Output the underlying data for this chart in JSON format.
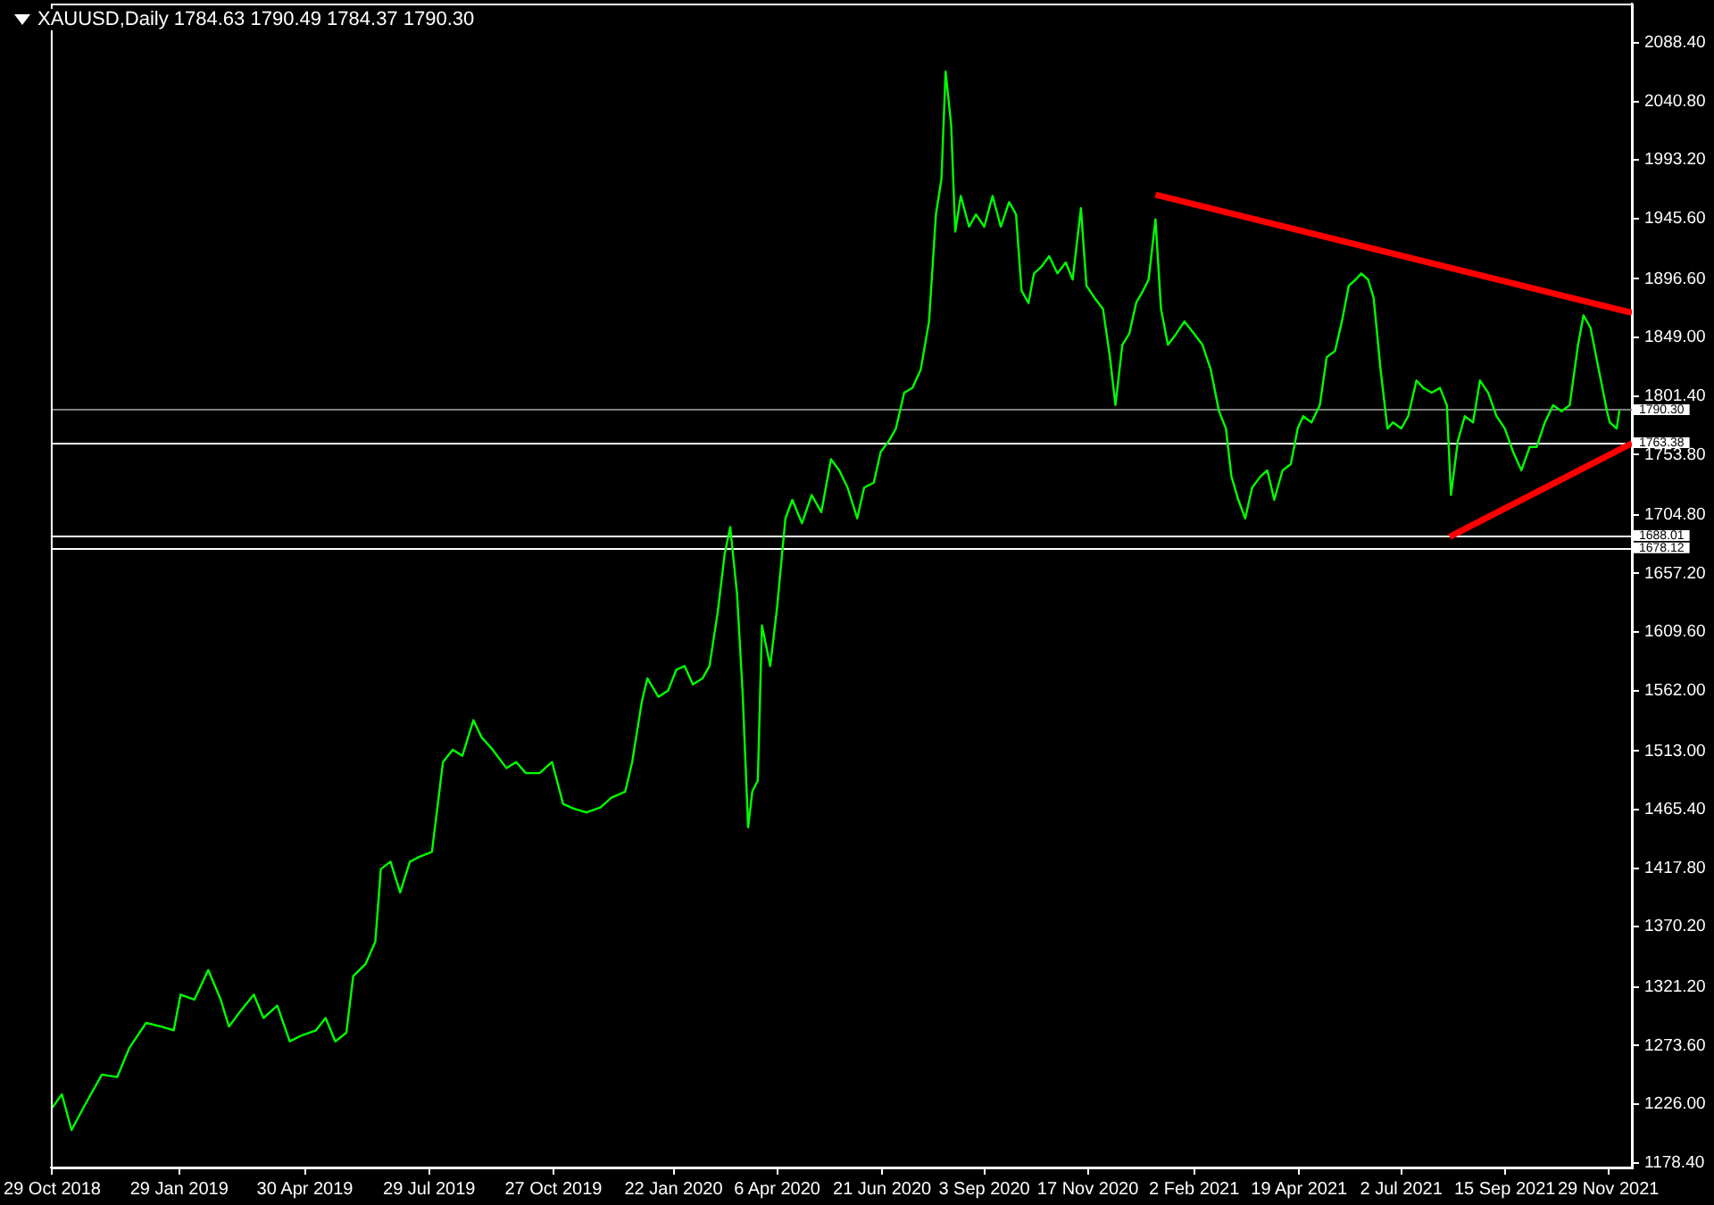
{
  "chart_data": {
    "type": "line",
    "title": "XAUUSD,Daily 1784.63 1790.49 1784.37 1790.30",
    "xlim": [
      "2018-10-28",
      "2021-12-16"
    ],
    "xticks": [
      {
        "value": "2018-10-29",
        "label": "29 Oct 2018"
      },
      {
        "value": "2019-01-29",
        "label": "29 Jan 2019"
      },
      {
        "value": "2019-04-30",
        "label": "30 Apr 2019"
      },
      {
        "value": "2019-07-29",
        "label": "29 Jul 2019"
      },
      {
        "value": "2019-10-27",
        "label": "27 Oct 2019"
      },
      {
        "value": "2020-01-22",
        "label": "22 Jan 2020"
      },
      {
        "value": "2020-04-06",
        "label": "6 Apr 2020"
      },
      {
        "value": "2020-06-21",
        "label": "21 Jun 2020"
      },
      {
        "value": "2020-09-03",
        "label": "3 Sep 2020"
      },
      {
        "value": "2020-11-17",
        "label": "17 Nov 2020"
      },
      {
        "value": "2021-02-02",
        "label": "2 Feb 2021"
      },
      {
        "value": "2021-04-19",
        "label": "19 Apr 2021"
      },
      {
        "value": "2021-07-02",
        "label": "2 Jul 2021"
      },
      {
        "value": "2021-09-15",
        "label": "15 Sep 2021"
      },
      {
        "value": "2021-11-29",
        "label": "29 Nov 2021"
      }
    ],
    "ylim": [
      1174.5,
      2120.3
    ],
    "yticks": [
      {
        "value": 2088.4,
        "label": "2088.40"
      },
      {
        "value": 2040.8,
        "label": "2040.80"
      },
      {
        "value": 1993.2,
        "label": "1993.20"
      },
      {
        "value": 1945.6,
        "label": "1945.60"
      },
      {
        "value": 1896.6,
        "label": "1896.60"
      },
      {
        "value": 1849,
        "label": "1849.00"
      },
      {
        "value": 1801.4,
        "label": "1801.40"
      },
      {
        "value": 1753.8,
        "label": "1753.80"
      },
      {
        "value": 1704.8,
        "label": "1704.80"
      },
      {
        "value": 1657.2,
        "label": "1657.20"
      },
      {
        "value": 1609.6,
        "label": "1609.60"
      },
      {
        "value": 1562,
        "label": "1562.00"
      },
      {
        "value": 1513,
        "label": "1513.00"
      },
      {
        "value": 1465.4,
        "label": "1465.40"
      },
      {
        "value": 1417.8,
        "label": "1417.80"
      },
      {
        "value": 1370.2,
        "label": "1370.20"
      },
      {
        "value": 1321.2,
        "label": "1321.20"
      },
      {
        "value": 1273.6,
        "label": "1273.60"
      },
      {
        "value": 1226,
        "label": "1226.00"
      },
      {
        "value": 1178.4,
        "label": "1178.40"
      }
    ],
    "grid": false,
    "legend": false,
    "marker": "none",
    "line_style": "solid",
    "series": [
      {
        "color": "#00ff00",
        "x": [
          "2018-10-29",
          "2018-11-05",
          "2018-11-12",
          "2018-11-22",
          "2018-12-04",
          "2018-12-15",
          "2018-12-24",
          "2019-01-05",
          "2019-01-16",
          "2019-01-25",
          "2019-01-30",
          "2019-02-09",
          "2019-02-19",
          "2019-02-28",
          "2019-03-06",
          "2019-03-14",
          "2019-03-24",
          "2019-03-31",
          "2019-04-10",
          "2019-04-19",
          "2019-04-28",
          "2019-05-08",
          "2019-05-15",
          "2019-05-22",
          "2019-05-30",
          "2019-06-04",
          "2019-06-13",
          "2019-06-20",
          "2019-06-24",
          "2019-07-01",
          "2019-07-08",
          "2019-07-15",
          "2019-07-22",
          "2019-07-31",
          "2019-08-08",
          "2019-08-15",
          "2019-08-22",
          "2019-08-30",
          "2019-09-05",
          "2019-09-13",
          "2019-09-23",
          "2019-09-30",
          "2019-10-07",
          "2019-10-17",
          "2019-10-26",
          "2019-11-03",
          "2019-11-11",
          "2019-11-20",
          "2019-11-30",
          "2019-12-08",
          "2019-12-18",
          "2019-12-23",
          "2019-12-30",
          "2020-01-03",
          "2020-01-11",
          "2020-01-18",
          "2020-01-24",
          "2020-01-30",
          "2020-02-05",
          "2020-02-12",
          "2020-02-17",
          "2020-02-23",
          "2020-02-28",
          "2020-03-03",
          "2020-03-08",
          "2020-03-12",
          "2020-03-16",
          "2020-03-19",
          "2020-03-23",
          "2020-03-26",
          "2020-04-01",
          "2020-04-06",
          "2020-04-12",
          "2020-04-17",
          "2020-04-24",
          "2020-05-01",
          "2020-05-08",
          "2020-05-15",
          "2020-05-21",
          "2020-05-27",
          "2020-06-03",
          "2020-06-08",
          "2020-06-15",
          "2020-06-20",
          "2020-06-26",
          "2020-07-01",
          "2020-07-07",
          "2020-07-13",
          "2020-07-19",
          "2020-07-25",
          "2020-07-30",
          "2020-08-03",
          "2020-08-06",
          "2020-08-10",
          "2020-08-13",
          "2020-08-17",
          "2020-08-23",
          "2020-08-28",
          "2020-09-03",
          "2020-09-09",
          "2020-09-15",
          "2020-09-21",
          "2020-09-26",
          "2020-09-30",
          "2020-10-05",
          "2020-10-09",
          "2020-10-14",
          "2020-10-20",
          "2020-10-26",
          "2020-11-01",
          "2020-11-06",
          "2020-11-12",
          "2020-11-16",
          "2020-11-22",
          "2020-11-28",
          "2020-12-03",
          "2020-12-07",
          "2020-12-12",
          "2020-12-17",
          "2020-12-22",
          "2020-12-27",
          "2020-12-31",
          "2021-01-05",
          "2021-01-09",
          "2021-01-14",
          "2021-01-20",
          "2021-01-26",
          "2021-02-02",
          "2021-02-08",
          "2021-02-14",
          "2021-02-20",
          "2021-02-25",
          "2021-03-01",
          "2021-03-06",
          "2021-03-11",
          "2021-03-16",
          "2021-03-22",
          "2021-03-27",
          "2021-04-01",
          "2021-04-07",
          "2021-04-13",
          "2021-04-18",
          "2021-04-22",
          "2021-04-28",
          "2021-05-04",
          "2021-05-09",
          "2021-05-15",
          "2021-05-20",
          "2021-05-25",
          "2021-05-30",
          "2021-06-03",
          "2021-06-08",
          "2021-06-12",
          "2021-06-17",
          "2021-06-22",
          "2021-06-26",
          "2021-07-02",
          "2021-07-07",
          "2021-07-13",
          "2021-07-18",
          "2021-07-24",
          "2021-07-30",
          "2021-08-04",
          "2021-08-07",
          "2021-08-12",
          "2021-08-17",
          "2021-08-23",
          "2021-08-28",
          "2021-09-03",
          "2021-09-09",
          "2021-09-15",
          "2021-09-21",
          "2021-09-27",
          "2021-10-03",
          "2021-10-08",
          "2021-10-14",
          "2021-10-20",
          "2021-10-26",
          "2021-11-01",
          "2021-11-07",
          "2021-11-11",
          "2021-11-16",
          "2021-11-22",
          "2021-11-28",
          "2021-11-30",
          "2021-12-05",
          "2021-12-07"
        ],
        "values": [
          1223,
          1234,
          1205,
          1226,
          1250,
          1248,
          1272,
          1292,
          1289,
          1286,
          1315,
          1311,
          1335,
          1311,
          1289,
          1301,
          1315,
          1296,
          1306,
          1277,
          1282,
          1286,
          1296,
          1277,
          1284,
          1330,
          1340,
          1358,
          1417,
          1423,
          1398,
          1423,
          1427,
          1431,
          1504,
          1514,
          1509,
          1538,
          1524,
          1514,
          1499,
          1504,
          1495,
          1495,
          1504,
          1470,
          1466,
          1463,
          1467,
          1475,
          1480,
          1504,
          1553,
          1572,
          1557,
          1562,
          1579,
          1582,
          1567,
          1572,
          1582,
          1626,
          1673,
          1695,
          1640,
          1560,
          1451,
          1480,
          1489,
          1615,
          1582,
          1630,
          1702,
          1717,
          1698,
          1721,
          1707,
          1750,
          1741,
          1727,
          1702,
          1727,
          1731,
          1756,
          1765,
          1775,
          1804,
          1808,
          1823,
          1862,
          1949,
          1978,
          2065,
          2022,
          1935,
          1964,
          1939,
          1949,
          1939,
          1964,
          1939,
          1959,
          1949,
          1887,
          1877,
          1901,
          1906,
          1915,
          1901,
          1910,
          1896,
          1954,
          1891,
          1881,
          1872,
          1833,
          1794,
          1843,
          1852,
          1877,
          1887,
          1896,
          1945,
          1872,
          1843,
          1852,
          1862,
          1852,
          1843,
          1823,
          1789,
          1775,
          1736,
          1717,
          1702,
          1727,
          1736,
          1741,
          1717,
          1741,
          1746,
          1775,
          1785,
          1780,
          1794,
          1833,
          1838,
          1862,
          1891,
          1896,
          1901,
          1896,
          1881,
          1823,
          1775,
          1780,
          1775,
          1785,
          1814,
          1808,
          1804,
          1808,
          1794,
          1721,
          1765,
          1785,
          1780,
          1814,
          1804,
          1785,
          1775,
          1756,
          1741,
          1760,
          1760,
          1780,
          1794,
          1789,
          1794,
          1843,
          1867,
          1857,
          1823,
          1789,
          1780,
          1775,
          1790
        ]
      },
      {
        "color": "#ff0000",
        "x": [
          "2021-01-05",
          "2021-12-16"
        ],
        "values": [
          1965,
          1869
        ]
      },
      {
        "color": "#ff0000",
        "x": [
          "2021-08-06",
          "2021-12-16"
        ],
        "values": [
          1687,
          1763
        ]
      }
    ],
    "ref_lines": [
      {
        "axis": "y",
        "value": 1790.3,
        "label": "1790.30",
        "color": "#808080"
      },
      {
        "axis": "y",
        "value": 1763.38,
        "label": "1763.38",
        "color": "#ffffff"
      },
      {
        "axis": "y",
        "value": 1688.01,
        "label": "1688.01",
        "color": "#ffffff"
      },
      {
        "axis": "y",
        "value": 1678.12,
        "label": "1678.12",
        "color": "#ffffff"
      }
    ]
  }
}
